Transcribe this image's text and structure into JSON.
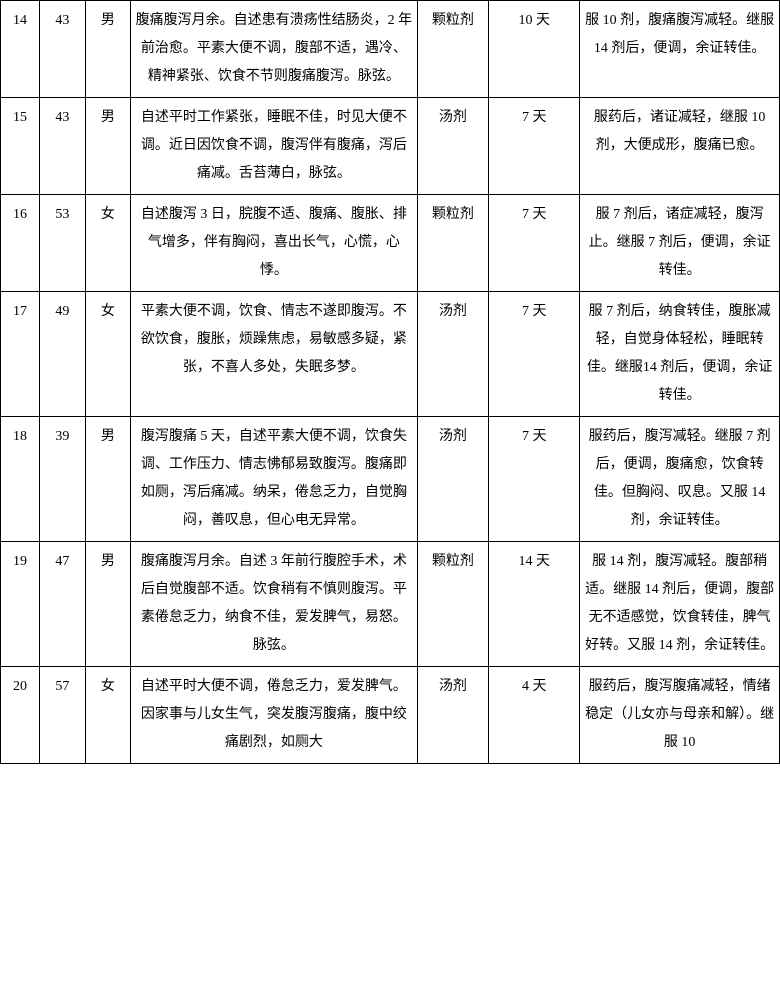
{
  "table": {
    "rows": [
      {
        "no": "14",
        "age": "43",
        "sex": "男",
        "desc": "腹痛腹泻月余。自述患有溃疡性结肠炎，2 年前治愈。平素大便不调，腹部不适，遇冷、精神紧张、饮食不节则腹痛腹泻。脉弦。",
        "form": "颗粒剂",
        "days": "10 天",
        "outcome": "服 10 剂，腹痛腹泻减轻。继服 14 剂后，便调，余证转佳。"
      },
      {
        "no": "15",
        "age": "43",
        "sex": "男",
        "desc": "自述平时工作紧张，睡眠不佳，时见大便不调。近日因饮食不调，腹泻伴有腹痛，泻后痛减。舌苔薄白，脉弦。",
        "form": "汤剂",
        "days": "7 天",
        "outcome": "服药后，诸证减轻，继服 10 剂，大便成形，腹痛已愈。"
      },
      {
        "no": "16",
        "age": "53",
        "sex": "女",
        "desc": "自述腹泻 3 日，脘腹不适、腹痛、腹胀、排气增多，伴有胸闷，喜出长气，心慌，心悸。",
        "form": "颗粒剂",
        "days": "7 天",
        "outcome": "服 7 剂后，诸症减轻，腹泻止。继服 7 剂后，便调，余证转佳。"
      },
      {
        "no": "17",
        "age": "49",
        "sex": "女",
        "desc": "平素大便不调，饮食、情志不遂即腹泻。不欲饮食，腹胀，烦躁焦虑，易敏感多疑，紧张，不喜人多处，失眠多梦。",
        "form": "汤剂",
        "days": "7 天",
        "outcome": "服 7 剂后，纳食转佳，腹胀减轻，自觉身体轻松，睡眠转佳。继服14 剂后，便调，余证转佳。"
      },
      {
        "no": "18",
        "age": "39",
        "sex": "男",
        "desc": "腹泻腹痛 5 天，自述平素大便不调，饮食失调、工作压力、情志怫郁易致腹泻。腹痛即如厕，泻后痛减。纳呆，倦怠乏力，自觉胸闷，善叹息，但心电无异常。",
        "form": "汤剂",
        "days": "7 天",
        "outcome": "服药后，腹泻减轻。继服 7 剂后，便调，腹痛愈，饮食转佳。但胸闷、叹息。又服 14 剂，余证转佳。"
      },
      {
        "no": "19",
        "age": "47",
        "sex": "男",
        "desc": "腹痛腹泻月余。自述 3 年前行腹腔手术，术后自觉腹部不适。饮食稍有不慎则腹泻。平素倦怠乏力，纳食不佳，爱发脾气，易怒。脉弦。",
        "form": "颗粒剂",
        "days": "14 天",
        "outcome": "服 14 剂，腹泻减轻。腹部稍适。继服 14 剂后，便调，腹部无不适感觉，饮食转佳，脾气好转。又服 14 剂，余证转佳。"
      },
      {
        "no": "20",
        "age": "57",
        "sex": "女",
        "desc": "自述平时大便不调，倦怠乏力，爱发脾气。因家事与儿女生气，突发腹泻腹痛，腹中绞痛剧烈，如厕大",
        "form": "汤剂",
        "days": "4 天",
        "outcome": "服药后，腹泻腹痛减轻，情绪稳定（儿女亦与母亲和解）。继服 10"
      }
    ]
  }
}
